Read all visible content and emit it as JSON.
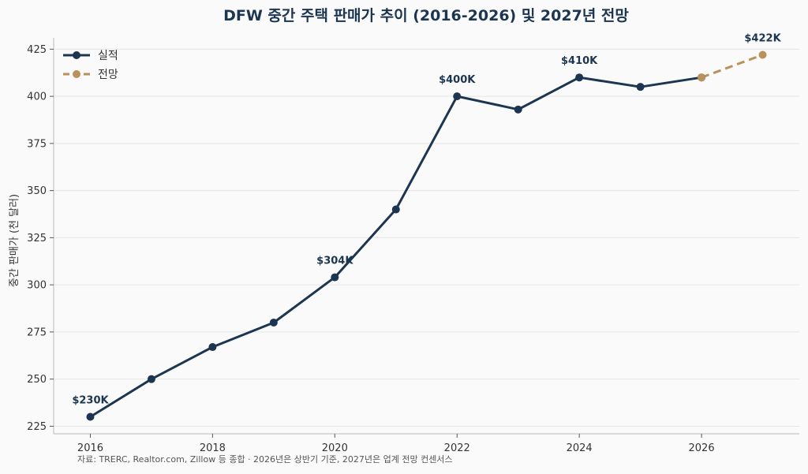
{
  "chart_data": {
    "type": "line",
    "title": "DFW 중간 주택 판매가 추이 (2016-2026) 및 2027년 전망",
    "ylabel": "중간 판매가 (천 달러)",
    "xlabel": "",
    "xlim": [
      2015.4,
      2027.6
    ],
    "ylim": [
      221,
      431
    ],
    "x_ticks": [
      2016,
      2018,
      2020,
      2022,
      2024,
      2026
    ],
    "y_ticks": [
      225,
      250,
      275,
      300,
      325,
      350,
      375,
      400,
      425
    ],
    "grid": "horizontal",
    "legend_position": "top-left",
    "series": [
      {
        "name": "실적",
        "style": "solid",
        "color": "#1c3550",
        "x": [
          2016,
          2017,
          2018,
          2019,
          2020,
          2021,
          2022,
          2023,
          2024,
          2025,
          2026
        ],
        "values": [
          230,
          250,
          267,
          280,
          304,
          340,
          400,
          393,
          410,
          405,
          410
        ]
      },
      {
        "name": "전망",
        "style": "dashed",
        "color": "#b8925a",
        "x": [
          2026,
          2027
        ],
        "values": [
          410,
          422
        ]
      }
    ],
    "annotations": [
      {
        "x": 2016,
        "y": 230,
        "text": "$230K"
      },
      {
        "x": 2020,
        "y": 304,
        "text": "$304K"
      },
      {
        "x": 2022,
        "y": 400,
        "text": "$400K"
      },
      {
        "x": 2024,
        "y": 410,
        "text": "$410K"
      },
      {
        "x": 2027,
        "y": 422,
        "text": "$422K"
      }
    ],
    "source": "자료: TRERC, Realtor.com, Zillow 등 종합 · 2026년은 상반기 기준, 2027년은 업계 전망 컨센서스"
  }
}
